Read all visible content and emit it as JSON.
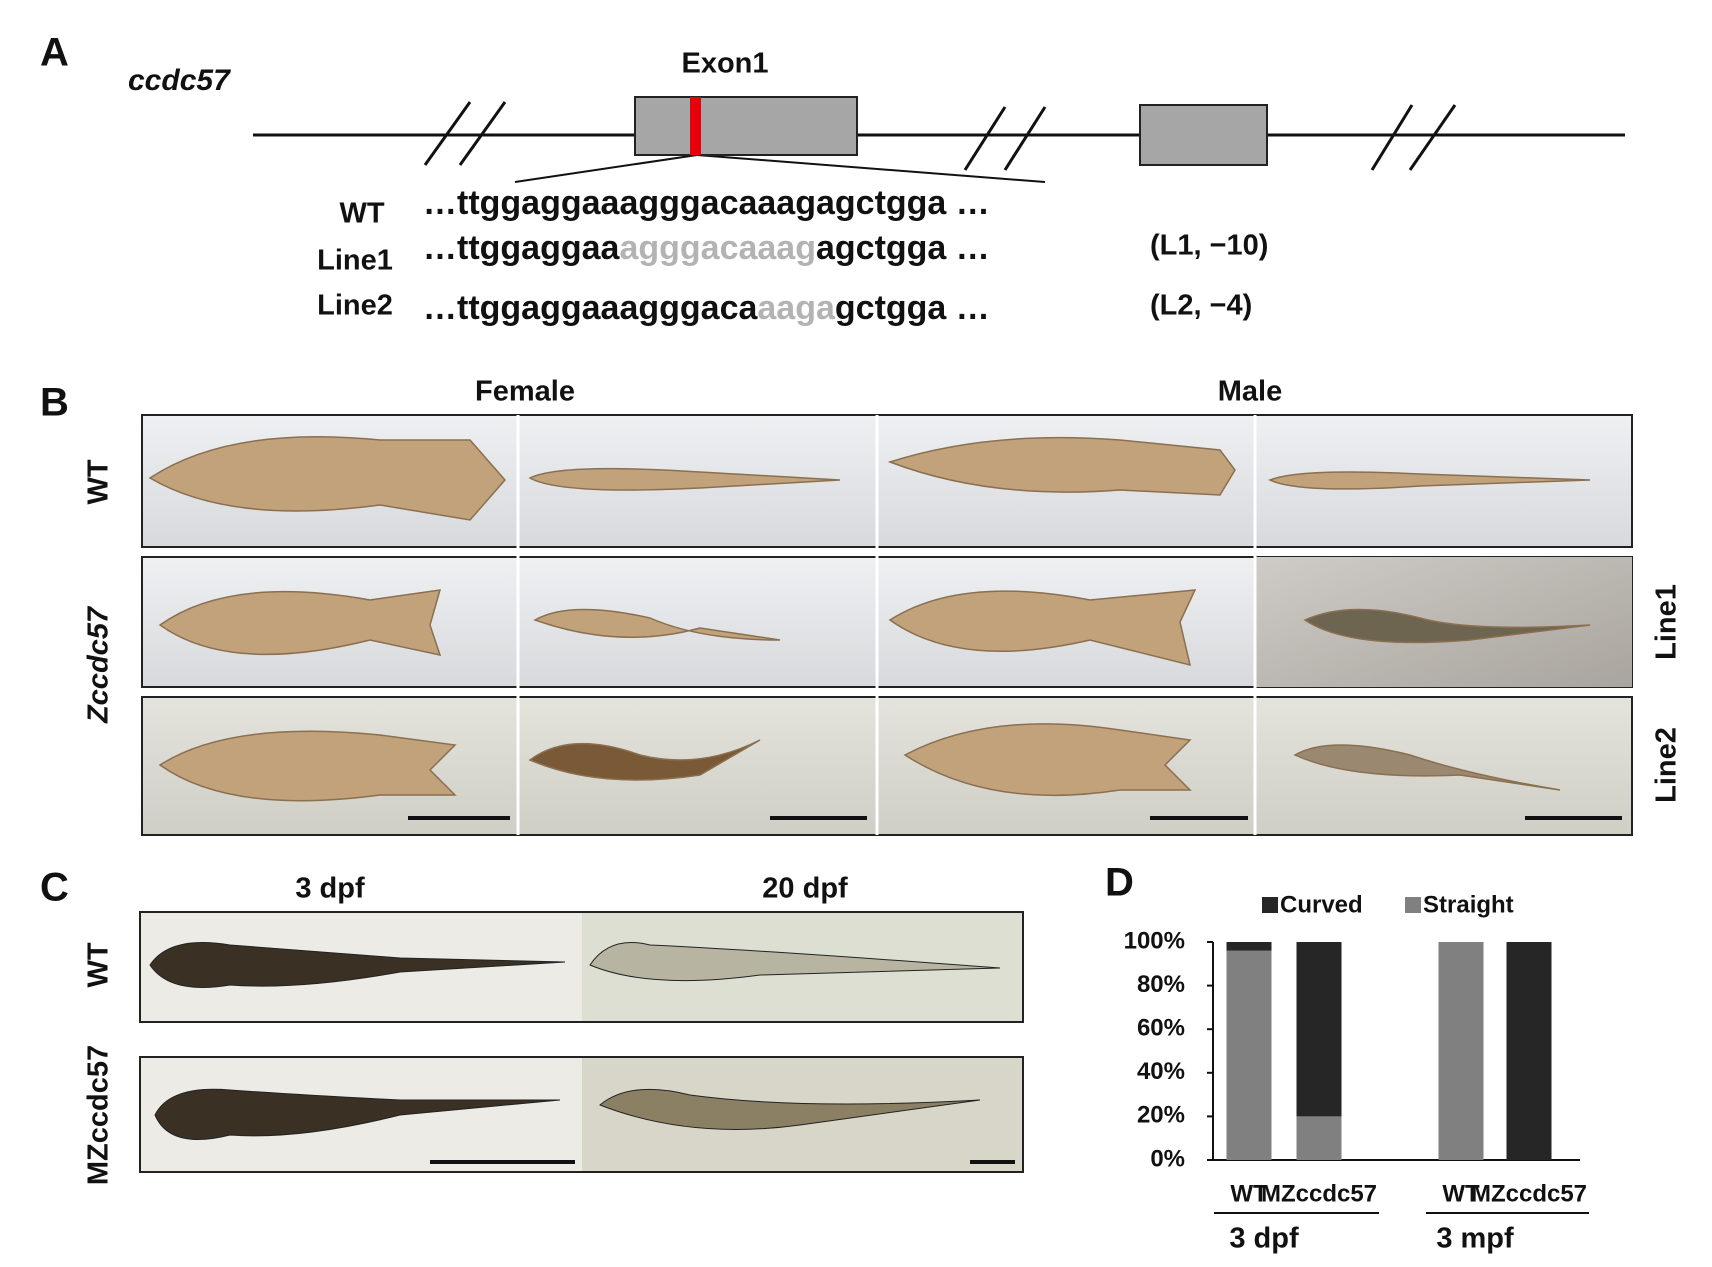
{
  "panel_a": {
    "label": "A",
    "gene": "ccdc57",
    "exon": "Exon1",
    "rows": [
      {
        "name": "WT",
        "sequence": [
          "…ttggaggaaagggacaaagagctgga …"
        ]
      },
      {
        "name": "Line1",
        "sequence": [
          "…ttggaggaa",
          "agggacaaag",
          "agctgga …"
        ],
        "note": "(L1, −10)"
      },
      {
        "name": "Line2",
        "sequence": [
          "…ttggaggaaagggaca",
          "aaga",
          "gctgga …"
        ],
        "note": "(L2, −4)"
      }
    ]
  },
  "panel_b": {
    "label": "B",
    "columns": [
      "Female",
      "Male"
    ],
    "rows": [
      "WT",
      "Zccdc57"
    ],
    "lines": [
      "Line1",
      "Line2"
    ]
  },
  "panel_c": {
    "label": "C",
    "columns": [
      "3 dpf",
      "20 dpf"
    ],
    "rows": [
      "WT",
      "MZccdc57"
    ]
  },
  "panel_d": {
    "label": "D"
  },
  "chart_data": {
    "type": "bar",
    "stacked": true,
    "categories": [
      "WT",
      "MZccdc57",
      "WT",
      "MZccdc57"
    ],
    "groups": [
      "3 dpf",
      "3 mpf"
    ],
    "series": [
      {
        "name": "Curved",
        "color": "#262626",
        "values": [
          4,
          80,
          0,
          100
        ]
      },
      {
        "name": "Straight",
        "color": "#808080",
        "values": [
          96,
          20,
          100,
          0
        ]
      }
    ],
    "ylim": [
      0,
      100
    ],
    "yticks": [
      {
        "value": 0,
        "label": "0%"
      },
      {
        "value": 20,
        "label": "20%"
      },
      {
        "value": 40,
        "label": "40%"
      },
      {
        "value": 60,
        "label": "60%"
      },
      {
        "value": 80,
        "label": "80%"
      },
      {
        "value": 100,
        "label": "100%"
      }
    ]
  }
}
